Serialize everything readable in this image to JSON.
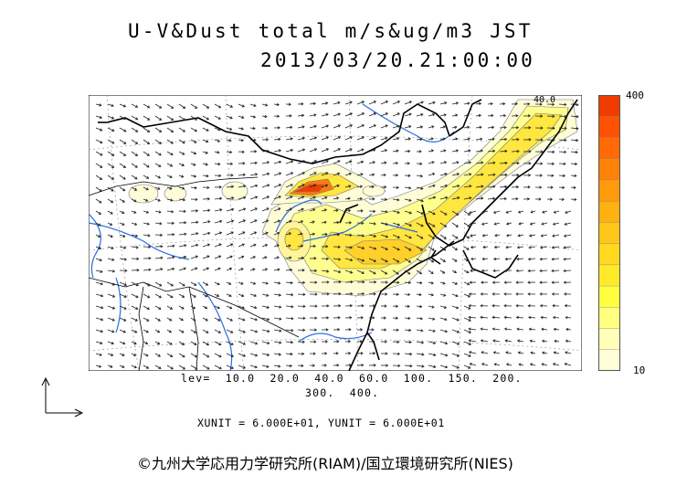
{
  "title": "U-V&Dust total m/s&ug/m3 JST",
  "datetime": "2013/03/20.21:00:00",
  "map": {
    "corner_label": "40.0"
  },
  "colorbar": {
    "max_label": "400",
    "min_label": "10",
    "colors": [
      "#fffdd8",
      "#ffffb8",
      "#ffff80",
      "#ffff40",
      "#ffea2a",
      "#ffd81f",
      "#ffc518",
      "#ffb012",
      "#ff9a0d",
      "#ff8208",
      "#ff6a05",
      "#ff5000",
      "#f03c00"
    ]
  },
  "levels": {
    "line1": "lev=  10.0  20.0  40.0  60.0  100.  150.  200.",
    "line2": "300.  400."
  },
  "units": "XUNIT = 6.000E+01, YUNIT = 6.000E+01",
  "copyright": "©九州大学応用力学研究所(RIAM)/国立環境研究所(NIES)"
}
